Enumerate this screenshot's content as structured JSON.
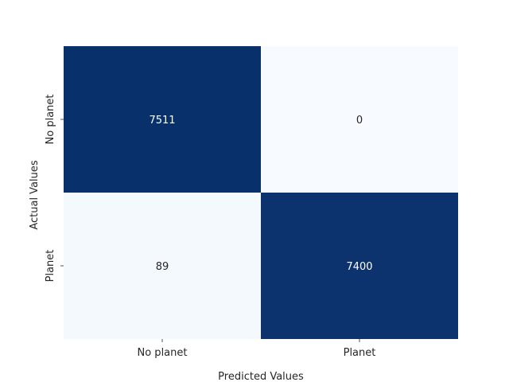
{
  "chart_data": {
    "type": "heatmap",
    "title": "",
    "xlabel": "Predicted Values",
    "ylabel": "Actual Values",
    "x_categories": [
      "No planet",
      "Planet"
    ],
    "y_categories": [
      "No planet",
      "Planet"
    ],
    "values": [
      [
        7511,
        0
      ],
      [
        89,
        7400
      ]
    ],
    "colormap": "Blues",
    "color_low": "#f7fbff",
    "color_high": "#08306b",
    "text_color_on_dark": "#ffffff",
    "text_color_on_light": "#262626",
    "colorbar": false,
    "grid": false
  }
}
